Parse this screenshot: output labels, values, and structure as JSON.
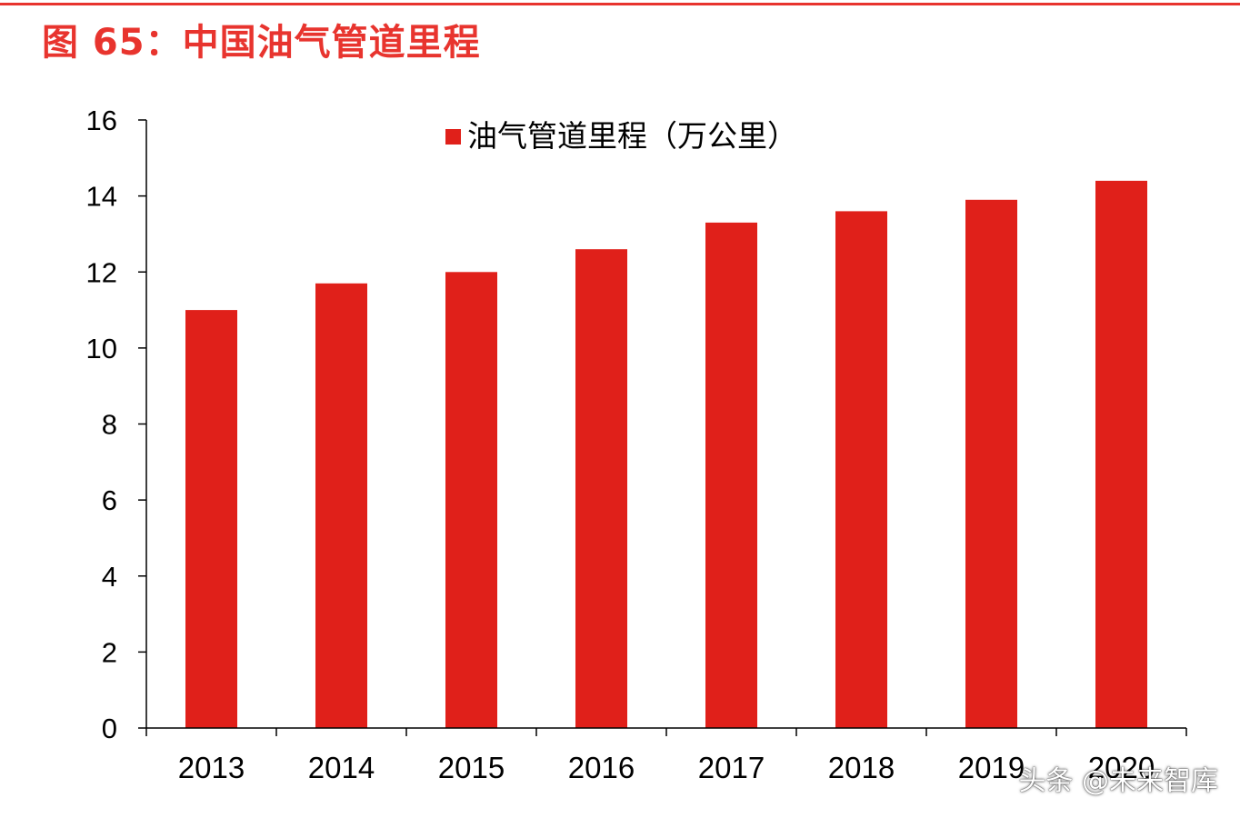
{
  "figure": {
    "title": "图 65：中国油气管道里程",
    "watermark": "头条 @未来智库"
  },
  "colors": {
    "bar": "#e0201a",
    "title": "#e8342e",
    "axis": "#000000"
  },
  "chart_data": {
    "type": "bar",
    "title": "",
    "xlabel": "",
    "ylabel": "",
    "categories": [
      "2013",
      "2014",
      "2015",
      "2016",
      "2017",
      "2018",
      "2019",
      "2020"
    ],
    "series": [
      {
        "name": "油气管道里程（万公里）",
        "values": [
          11.0,
          11.7,
          12.0,
          12.6,
          13.3,
          13.6,
          13.9,
          14.4
        ]
      }
    ],
    "ylim": [
      0,
      16
    ],
    "yticks": [
      0,
      2,
      4,
      6,
      8,
      10,
      12,
      14,
      16
    ],
    "grid": false,
    "legend": "top-center"
  }
}
